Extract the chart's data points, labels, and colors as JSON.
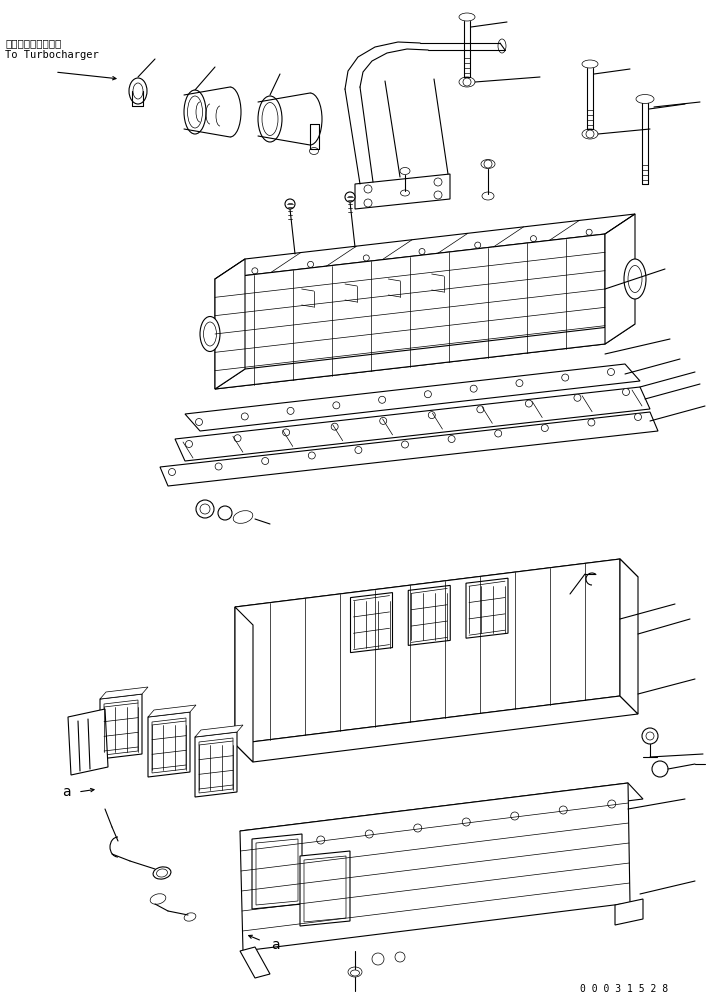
{
  "bg_color": "#ffffff",
  "line_color": "#000000",
  "fig_width": 7.2,
  "fig_height": 10.03,
  "dpi": 100,
  "label_turbo_jp": "ターボチャージャへ",
  "label_turbo_en": "To Turbocharger",
  "label_a": "a",
  "part_number": "0 0 0 3 1 5 2 8"
}
